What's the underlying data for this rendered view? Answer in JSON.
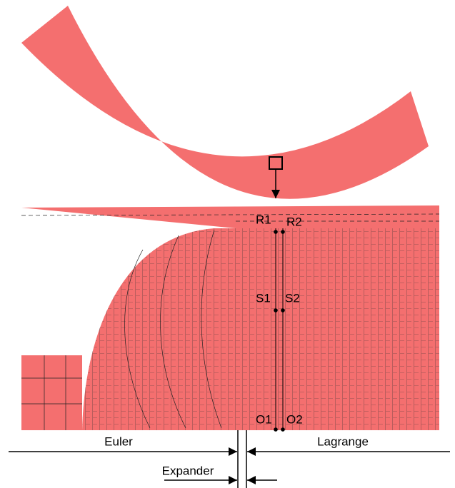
{
  "points": {
    "r1": "R1",
    "r2": "R2",
    "s1": "S1",
    "s2": "S2",
    "o1": "O1",
    "o2": "O2"
  },
  "regions": {
    "euler": "Euler",
    "lagrange": "Lagrange",
    "expander": "Expander"
  }
}
